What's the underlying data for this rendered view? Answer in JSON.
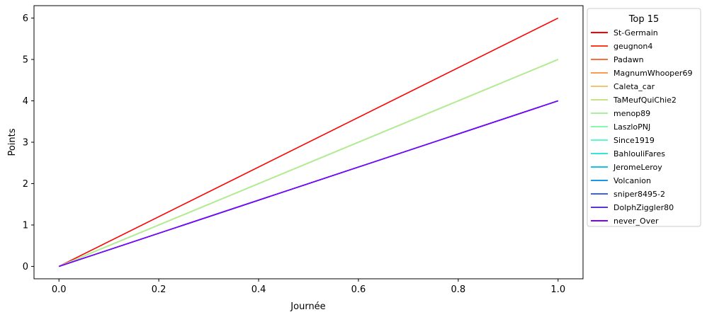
{
  "chart_data": {
    "type": "line",
    "xlabel": "Journée",
    "ylabel": "Points",
    "xlim": [
      -0.05,
      1.05
    ],
    "ylim": [
      -0.3,
      6.3
    ],
    "xticks": [
      "0.0",
      "0.2",
      "0.4",
      "0.6",
      "0.8",
      "1.0"
    ],
    "yticks": [
      "0",
      "1",
      "2",
      "3",
      "4",
      "5",
      "6"
    ],
    "grid": false,
    "legend": {
      "title": "Top 15",
      "placement": "outside-right-top"
    },
    "x": [
      0,
      1
    ],
    "series": [
      {
        "name": "St-Germain",
        "color": "#ff0000",
        "values": [
          0,
          6
        ]
      },
      {
        "name": "geugnon4",
        "color": "#ff3b1e",
        "values": [
          0,
          5
        ]
      },
      {
        "name": "Padawn",
        "color": "#ff6d38",
        "values": [
          0,
          5
        ]
      },
      {
        "name": "MagnumWhooper69",
        "color": "#ff9a53",
        "values": [
          0,
          5
        ]
      },
      {
        "name": "Caleta_car",
        "color": "#f0c66f",
        "values": [
          0,
          5
        ]
      },
      {
        "name": "TaMeufQuiChie2",
        "color": "#c8e285",
        "values": [
          0,
          5
        ]
      },
      {
        "name": "menop89",
        "color": "#a6f497",
        "values": [
          0,
          5
        ]
      },
      {
        "name": "LaszloPNJ",
        "color": "#82fcaa",
        "values": [
          0,
          4
        ]
      },
      {
        "name": "Since1919",
        "color": "#5cfcc4",
        "values": [
          0,
          4
        ]
      },
      {
        "name": "BahlouliFares",
        "color": "#35e6d6",
        "values": [
          0,
          4
        ]
      },
      {
        "name": "JeromeLeroy",
        "color": "#12c4e8",
        "values": [
          0,
          4
        ]
      },
      {
        "name": "Volcanion",
        "color": "#1898e6",
        "values": [
          0,
          4
        ]
      },
      {
        "name": "sniper8495-2",
        "color": "#3a62ea",
        "values": [
          0,
          4
        ]
      },
      {
        "name": "DolphZiggler80",
        "color": "#5a36d8",
        "values": [
          0,
          4
        ]
      },
      {
        "name": "never_Over",
        "color": "#7f00ff",
        "values": [
          0,
          4
        ]
      }
    ]
  }
}
